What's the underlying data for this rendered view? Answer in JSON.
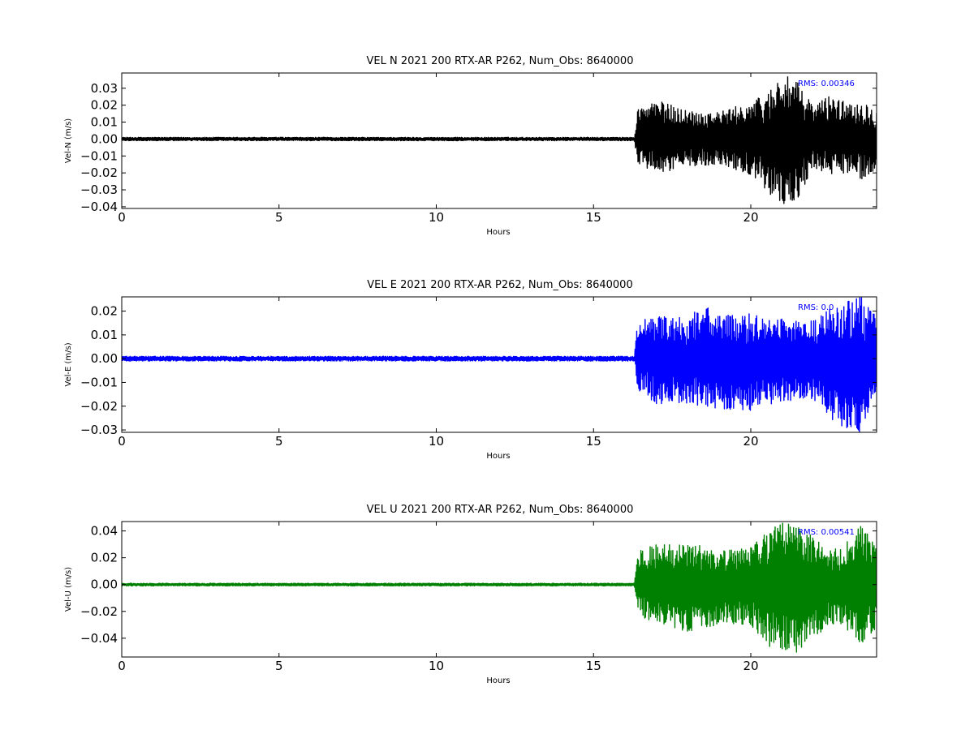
{
  "chart_data": [
    {
      "type": "line",
      "title": "VEL N 2021 200 RTX-AR  P262, Num_Obs: 8640000",
      "xlabel": "Hours",
      "ylabel": "Vel-N (m/s)",
      "xlim": [
        0,
        24
      ],
      "ylim": [
        -0.041,
        0.039
      ],
      "x_ticks": [
        0,
        5,
        10,
        15,
        20
      ],
      "x_tick_labels": [
        "0",
        "5",
        "10",
        "15",
        "20"
      ],
      "y_ticks": [
        0.03,
        0.02,
        0.01,
        0.0,
        -0.01,
        -0.02,
        -0.03,
        -0.04
      ],
      "y_tick_labels": [
        "0.03",
        "0.02",
        "0.01",
        "0.00",
        "−0.01",
        "−0.02",
        "−0.03",
        "−0.04"
      ],
      "color": "#000000",
      "annotation": "RMS:  0.00346",
      "annotation_color": "#0000ff",
      "grid": false,
      "series": [
        {
          "x": [
            0,
            16.3,
            16.4,
            17,
            18,
            19,
            20,
            20.5,
            21,
            21.5,
            22,
            22.5,
            23,
            23.5,
            24
          ],
          "y_max": [
            0.001,
            0.001,
            0.018,
            0.023,
            0.017,
            0.016,
            0.022,
            0.027,
            0.039,
            0.033,
            0.02,
            0.026,
            0.022,
            0.023,
            0.017
          ],
          "y_min": [
            -0.001,
            -0.001,
            -0.015,
            -0.021,
            -0.016,
            -0.015,
            -0.021,
            -0.03,
            -0.041,
            -0.035,
            -0.017,
            -0.022,
            -0.02,
            -0.024,
            -0.018
          ]
        }
      ]
    },
    {
      "type": "line",
      "title": "VEL E 2021 200 RTX-AR  P262, Num_Obs: 8640000",
      "xlabel": "Hours",
      "ylabel": "Vel-E (m/s)",
      "xlim": [
        0,
        24
      ],
      "ylim": [
        -0.031,
        0.026
      ],
      "x_ticks": [
        0,
        5,
        10,
        15,
        20
      ],
      "x_tick_labels": [
        "0",
        "5",
        "10",
        "15",
        "20"
      ],
      "y_ticks": [
        0.02,
        0.01,
        0.0,
        -0.01,
        -0.02,
        -0.03
      ],
      "y_tick_labels": [
        "0.02",
        "0.01",
        "0.00",
        "−0.01",
        "−0.02",
        "−0.03"
      ],
      "color": "#0000ff",
      "annotation": "RMS:  0.0",
      "annotation_color": "#0000ff",
      "grid": false,
      "series": [
        {
          "x": [
            0,
            16.3,
            16.4,
            17,
            18,
            18.5,
            19,
            20,
            21,
            22,
            22.5,
            23,
            23.5,
            24
          ],
          "y_max": [
            0.001,
            0.001,
            0.016,
            0.018,
            0.017,
            0.023,
            0.018,
            0.019,
            0.017,
            0.016,
            0.021,
            0.025,
            0.026,
            0.018
          ],
          "y_min": [
            -0.001,
            -0.001,
            -0.013,
            -0.019,
            -0.019,
            -0.02,
            -0.021,
            -0.022,
            -0.018,
            -0.017,
            -0.025,
            -0.03,
            -0.031,
            -0.02
          ]
        }
      ]
    },
    {
      "type": "line",
      "title": "VEL U 2021 200 RTX-AR  P262, Num_Obs: 8640000",
      "xlabel": "Hours",
      "ylabel": "Vel-U (m/s)",
      "xlim": [
        0,
        24
      ],
      "ylim": [
        -0.054,
        0.047
      ],
      "x_ticks": [
        0,
        5,
        10,
        15,
        20
      ],
      "x_tick_labels": [
        "0",
        "5",
        "10",
        "15",
        "20"
      ],
      "y_ticks": [
        0.04,
        0.02,
        0.0,
        -0.02,
        -0.04
      ],
      "y_tick_labels": [
        "0.04",
        "0.02",
        "0.00",
        "−0.02",
        "−0.04"
      ],
      "color": "#008000",
      "annotation": "RMS:  0.00541",
      "annotation_color": "#0000ff",
      "grid": false,
      "series": [
        {
          "x": [
            0,
            16.3,
            16.4,
            17,
            18,
            19,
            20,
            20.5,
            21,
            21.5,
            22,
            22.5,
            23,
            23.5,
            24
          ],
          "y_max": [
            0.001,
            0.001,
            0.025,
            0.03,
            0.032,
            0.025,
            0.028,
            0.04,
            0.046,
            0.047,
            0.035,
            0.025,
            0.03,
            0.045,
            0.03
          ],
          "y_min": [
            -0.001,
            -0.001,
            -0.022,
            -0.03,
            -0.035,
            -0.03,
            -0.03,
            -0.045,
            -0.052,
            -0.054,
            -0.04,
            -0.03,
            -0.035,
            -0.045,
            -0.035
          ]
        }
      ]
    }
  ]
}
